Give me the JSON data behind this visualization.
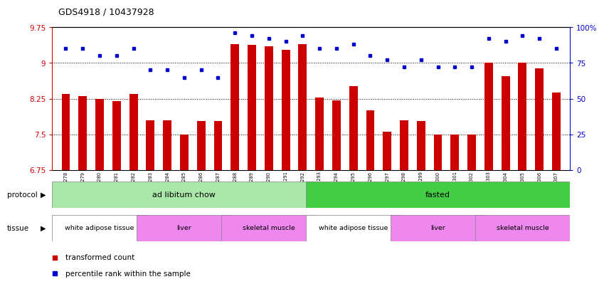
{
  "title": "GDS4918 / 10437928",
  "samples": [
    "GSM1131278",
    "GSM1131279",
    "GSM1131280",
    "GSM1131281",
    "GSM1131282",
    "GSM1131283",
    "GSM1131284",
    "GSM1131285",
    "GSM1131286",
    "GSM1131287",
    "GSM1131288",
    "GSM1131289",
    "GSM1131290",
    "GSM1131291",
    "GSM1131292",
    "GSM1131293",
    "GSM1131294",
    "GSM1131295",
    "GSM1131296",
    "GSM1131297",
    "GSM1131298",
    "GSM1131299",
    "GSM1131300",
    "GSM1131301",
    "GSM1131302",
    "GSM1131303",
    "GSM1131304",
    "GSM1131305",
    "GSM1131306",
    "GSM1131307"
  ],
  "bar_values": [
    8.35,
    8.3,
    8.25,
    8.2,
    8.35,
    7.8,
    7.8,
    7.5,
    7.78,
    7.78,
    9.4,
    9.38,
    9.35,
    9.28,
    9.4,
    8.28,
    8.22,
    8.52,
    8.0,
    7.55,
    7.8,
    7.78,
    7.5,
    7.5,
    7.5,
    9.0,
    8.72,
    9.0,
    8.88,
    8.38
  ],
  "dot_values_pct": [
    85,
    85,
    80,
    80,
    85,
    70,
    70,
    65,
    70,
    65,
    96,
    94,
    92,
    90,
    94,
    85,
    85,
    88,
    80,
    77,
    72,
    77,
    72,
    72,
    72,
    92,
    90,
    94,
    92,
    85
  ],
  "ylim_left": [
    6.75,
    9.75
  ],
  "ylim_right": [
    0,
    100
  ],
  "yticks_left": [
    6.75,
    7.5,
    8.25,
    9.0,
    9.75
  ],
  "ytick_labels_left": [
    "6.75",
    "7.5",
    "8.25",
    "9",
    "9.75"
  ],
  "yticks_right": [
    0,
    25,
    50,
    75,
    100
  ],
  "ytick_labels_right": [
    "0",
    "25",
    "50",
    "75",
    "100%"
  ],
  "bar_color": "#cc0000",
  "dot_color": "#0000cc",
  "bg_color": "#ffffff",
  "chart_bg": "#ffffff",
  "protocol_groups": [
    {
      "label": "ad libitum chow",
      "start": 0,
      "end": 14,
      "color": "#aae8aa"
    },
    {
      "label": "fasted",
      "start": 15,
      "end": 29,
      "color": "#44cc44"
    }
  ],
  "tissue_groups": [
    {
      "label": "white adipose tissue",
      "start": 0,
      "end": 4,
      "color": "#ffffff"
    },
    {
      "label": "liver",
      "start": 5,
      "end": 9,
      "color": "#ee88ee"
    },
    {
      "label": "skeletal muscle",
      "start": 10,
      "end": 14,
      "color": "#ee88ee"
    },
    {
      "label": "white adipose tissue",
      "start": 15,
      "end": 19,
      "color": "#ffffff"
    },
    {
      "label": "liver",
      "start": 20,
      "end": 24,
      "color": "#ee88ee"
    },
    {
      "label": "skeletal muscle",
      "start": 25,
      "end": 29,
      "color": "#ee88ee"
    }
  ]
}
